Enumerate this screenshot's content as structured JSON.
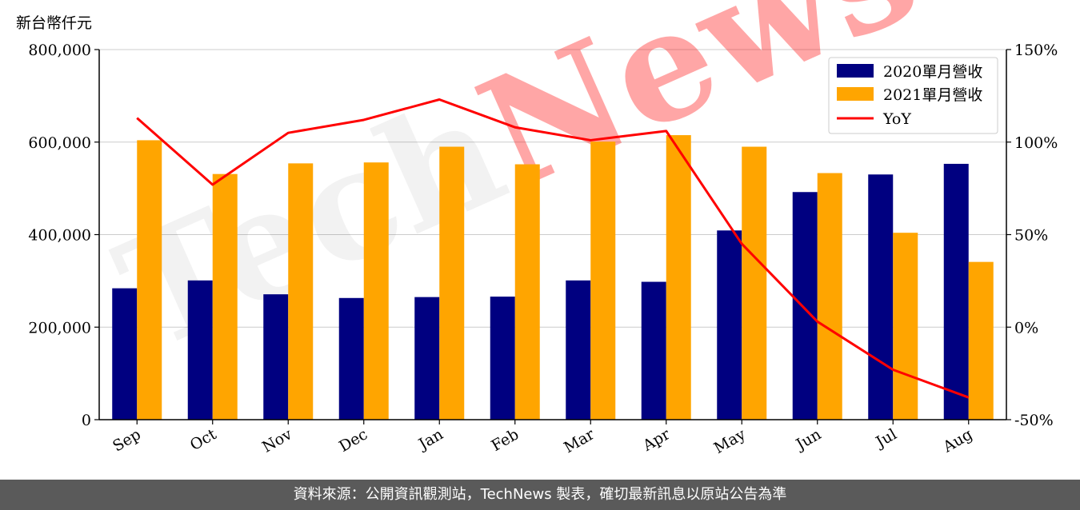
{
  "unit_label": "新台幣仟元",
  "footer": {
    "source": "資料來源：公開資訊觀測站，TechNews 製表，確切最新訊息以原站公告為準"
  },
  "watermark": "TechNews",
  "colors": {
    "series_2020": "#000080",
    "series_2021": "#ffa500",
    "yoy": "#ff0000"
  },
  "chart_data": {
    "type": "bar",
    "categories": [
      "Sep",
      "Oct",
      "Nov",
      "Dec",
      "Jan",
      "Feb",
      "Mar",
      "Apr",
      "May",
      "Jun",
      "Jul",
      "Aug"
    ],
    "series": [
      {
        "name": "2020單月營收",
        "values": [
          284000,
          301000,
          271000,
          263000,
          265000,
          266000,
          301000,
          298000,
          409000,
          492000,
          530000,
          553000
        ]
      },
      {
        "name": "2021單月營收",
        "values": [
          604000,
          531000,
          554000,
          556000,
          590000,
          552000,
          601000,
          615000,
          590000,
          533000,
          404000,
          341000
        ]
      }
    ],
    "line_series": {
      "name": "YoY",
      "axis": "right",
      "values": [
        113,
        77,
        105,
        112,
        123,
        108,
        101,
        106,
        45,
        3,
        -23,
        -38
      ]
    },
    "ylim": [
      0,
      800000
    ],
    "y2lim": [
      -50,
      150
    ],
    "yticks": [
      "0",
      "200,000",
      "400,000",
      "600,000",
      "800,000"
    ],
    "y2ticks": [
      "-50%",
      "0%",
      "50%",
      "100%",
      "150%"
    ],
    "grid": "horizontal",
    "legend_position": "top-right"
  }
}
